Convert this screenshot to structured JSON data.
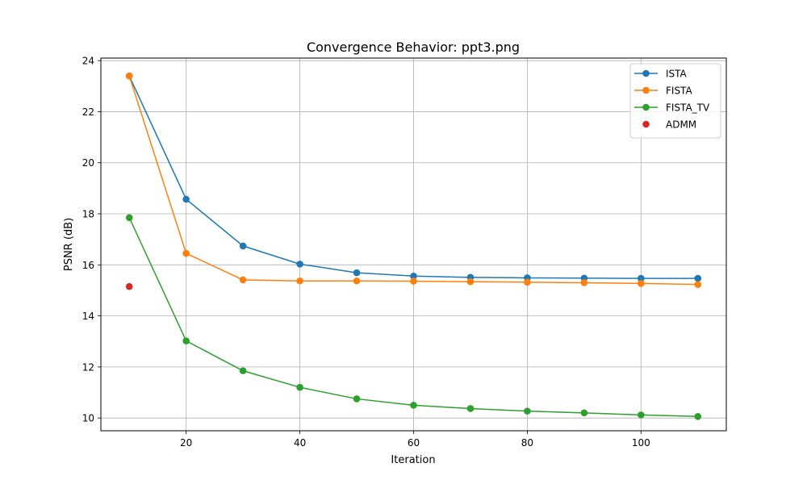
{
  "chart_data": {
    "type": "line",
    "title": "Convergence Behavior: ppt3.png",
    "xlabel": "Iteration",
    "ylabel": "PSNR (dB)",
    "xlim": [
      5,
      115
    ],
    "ylim": [
      9.5,
      24.1
    ],
    "xticks": [
      20,
      40,
      60,
      80,
      100
    ],
    "yticks": [
      10,
      12,
      14,
      16,
      18,
      20,
      22,
      24
    ],
    "grid": true,
    "legend_position": "upper-right",
    "series": [
      {
        "name": "ISTA",
        "color": "#1f77b4",
        "x": [
          10,
          20,
          30,
          40,
          50,
          60,
          70,
          80,
          90,
          100,
          110
        ],
        "y": [
          23.4,
          18.57,
          16.74,
          16.03,
          15.69,
          15.56,
          15.51,
          15.49,
          15.48,
          15.47,
          15.47
        ]
      },
      {
        "name": "FISTA",
        "color": "#ff7f0e",
        "x": [
          10,
          20,
          30,
          40,
          50,
          60,
          70,
          80,
          90,
          100,
          110
        ],
        "y": [
          23.4,
          16.45,
          15.41,
          15.37,
          15.37,
          15.36,
          15.34,
          15.32,
          15.3,
          15.27,
          15.23
        ]
      },
      {
        "name": "FISTA_TV",
        "color": "#2ca02c",
        "x": [
          10,
          20,
          30,
          40,
          50,
          60,
          70,
          80,
          90,
          100,
          110
        ],
        "y": [
          17.85,
          13.02,
          11.85,
          11.2,
          10.75,
          10.5,
          10.37,
          10.27,
          10.2,
          10.12,
          10.06
        ]
      },
      {
        "name": "ADMM",
        "color": "#d62728",
        "x": [
          10
        ],
        "y": [
          15.15
        ]
      }
    ]
  }
}
